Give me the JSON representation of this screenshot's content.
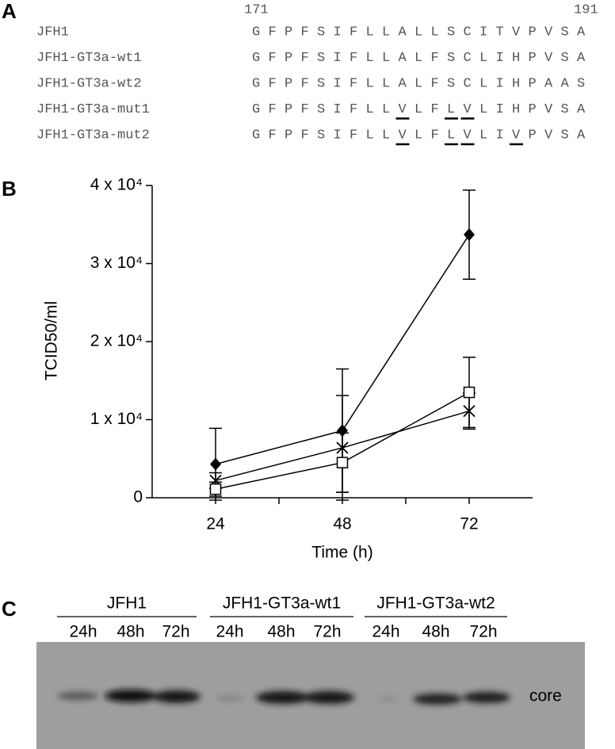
{
  "panel_a": {
    "label": "A",
    "start": "171",
    "end": "191",
    "rows": [
      {
        "name": "JFH1",
        "sequence": "GFPFSIFLLALLSCITVPVSA"
      },
      {
        "name": "JFH1-GT3a-wt1",
        "sequence": "GFPFSIFLLALFSCLIHPVSA"
      },
      {
        "name": "JFH1-GT3a-wt2",
        "sequence": "GFPFSIFLLALFSCLIHPAAS"
      },
      {
        "name": "JFH1-GT3a-mut1",
        "sequence": "GFPFSIFLLVLFLVLIHPVSA",
        "underlined": [
          9,
          12,
          13
        ]
      },
      {
        "name": "JFH1-GT3a-mut2",
        "sequence": "GFPFSIFLLVLFLVLIVPVSA",
        "underlined": [
          9,
          12,
          13,
          16
        ]
      }
    ]
  },
  "chart_data": {
    "type": "line",
    "label": "B",
    "ylabel": "TCID50/ml",
    "xlabel": "Time (h)",
    "x": [
      24,
      48,
      72
    ],
    "xlim": [
      12,
      84
    ],
    "xticks": [
      24,
      48,
      72
    ],
    "xminor": [
      36,
      60
    ],
    "ylim": [
      0,
      40000
    ],
    "yticks": [
      0,
      {
        "value": 10000,
        "label": "1 x 10⁴"
      },
      {
        "value": 20000,
        "label": "2 x 10⁴"
      },
      {
        "value": 30000,
        "label": "3 x 10⁴"
      },
      {
        "value": 40000,
        "label": "4 x 10⁴"
      }
    ],
    "series": [
      {
        "marker": "diamond",
        "color": "#000000",
        "values": [
          4300,
          8600,
          33700
        ],
        "errors": [
          4600,
          7900,
          5700
        ]
      },
      {
        "marker": "x",
        "color": "#000000",
        "values": [
          2200,
          6400,
          11100
        ],
        "errors": [
          1000,
          6700,
          2300
        ]
      },
      {
        "marker": "square",
        "color": "#000000",
        "values": [
          1100,
          4500,
          13500
        ],
        "errors": [
          900,
          3800,
          4500
        ]
      }
    ]
  },
  "panel_c": {
    "label": "C",
    "band_label": "core",
    "groups": [
      {
        "name": "JFH1",
        "lanes": [
          "24h",
          "48h",
          "72h"
        ]
      },
      {
        "name": "JFH1-GT3a-wt1",
        "lanes": [
          "24h",
          "48h",
          "72h"
        ]
      },
      {
        "name": "JFH1-GT3a-wt2",
        "lanes": [
          "24h",
          "48h",
          "72h"
        ]
      }
    ]
  }
}
